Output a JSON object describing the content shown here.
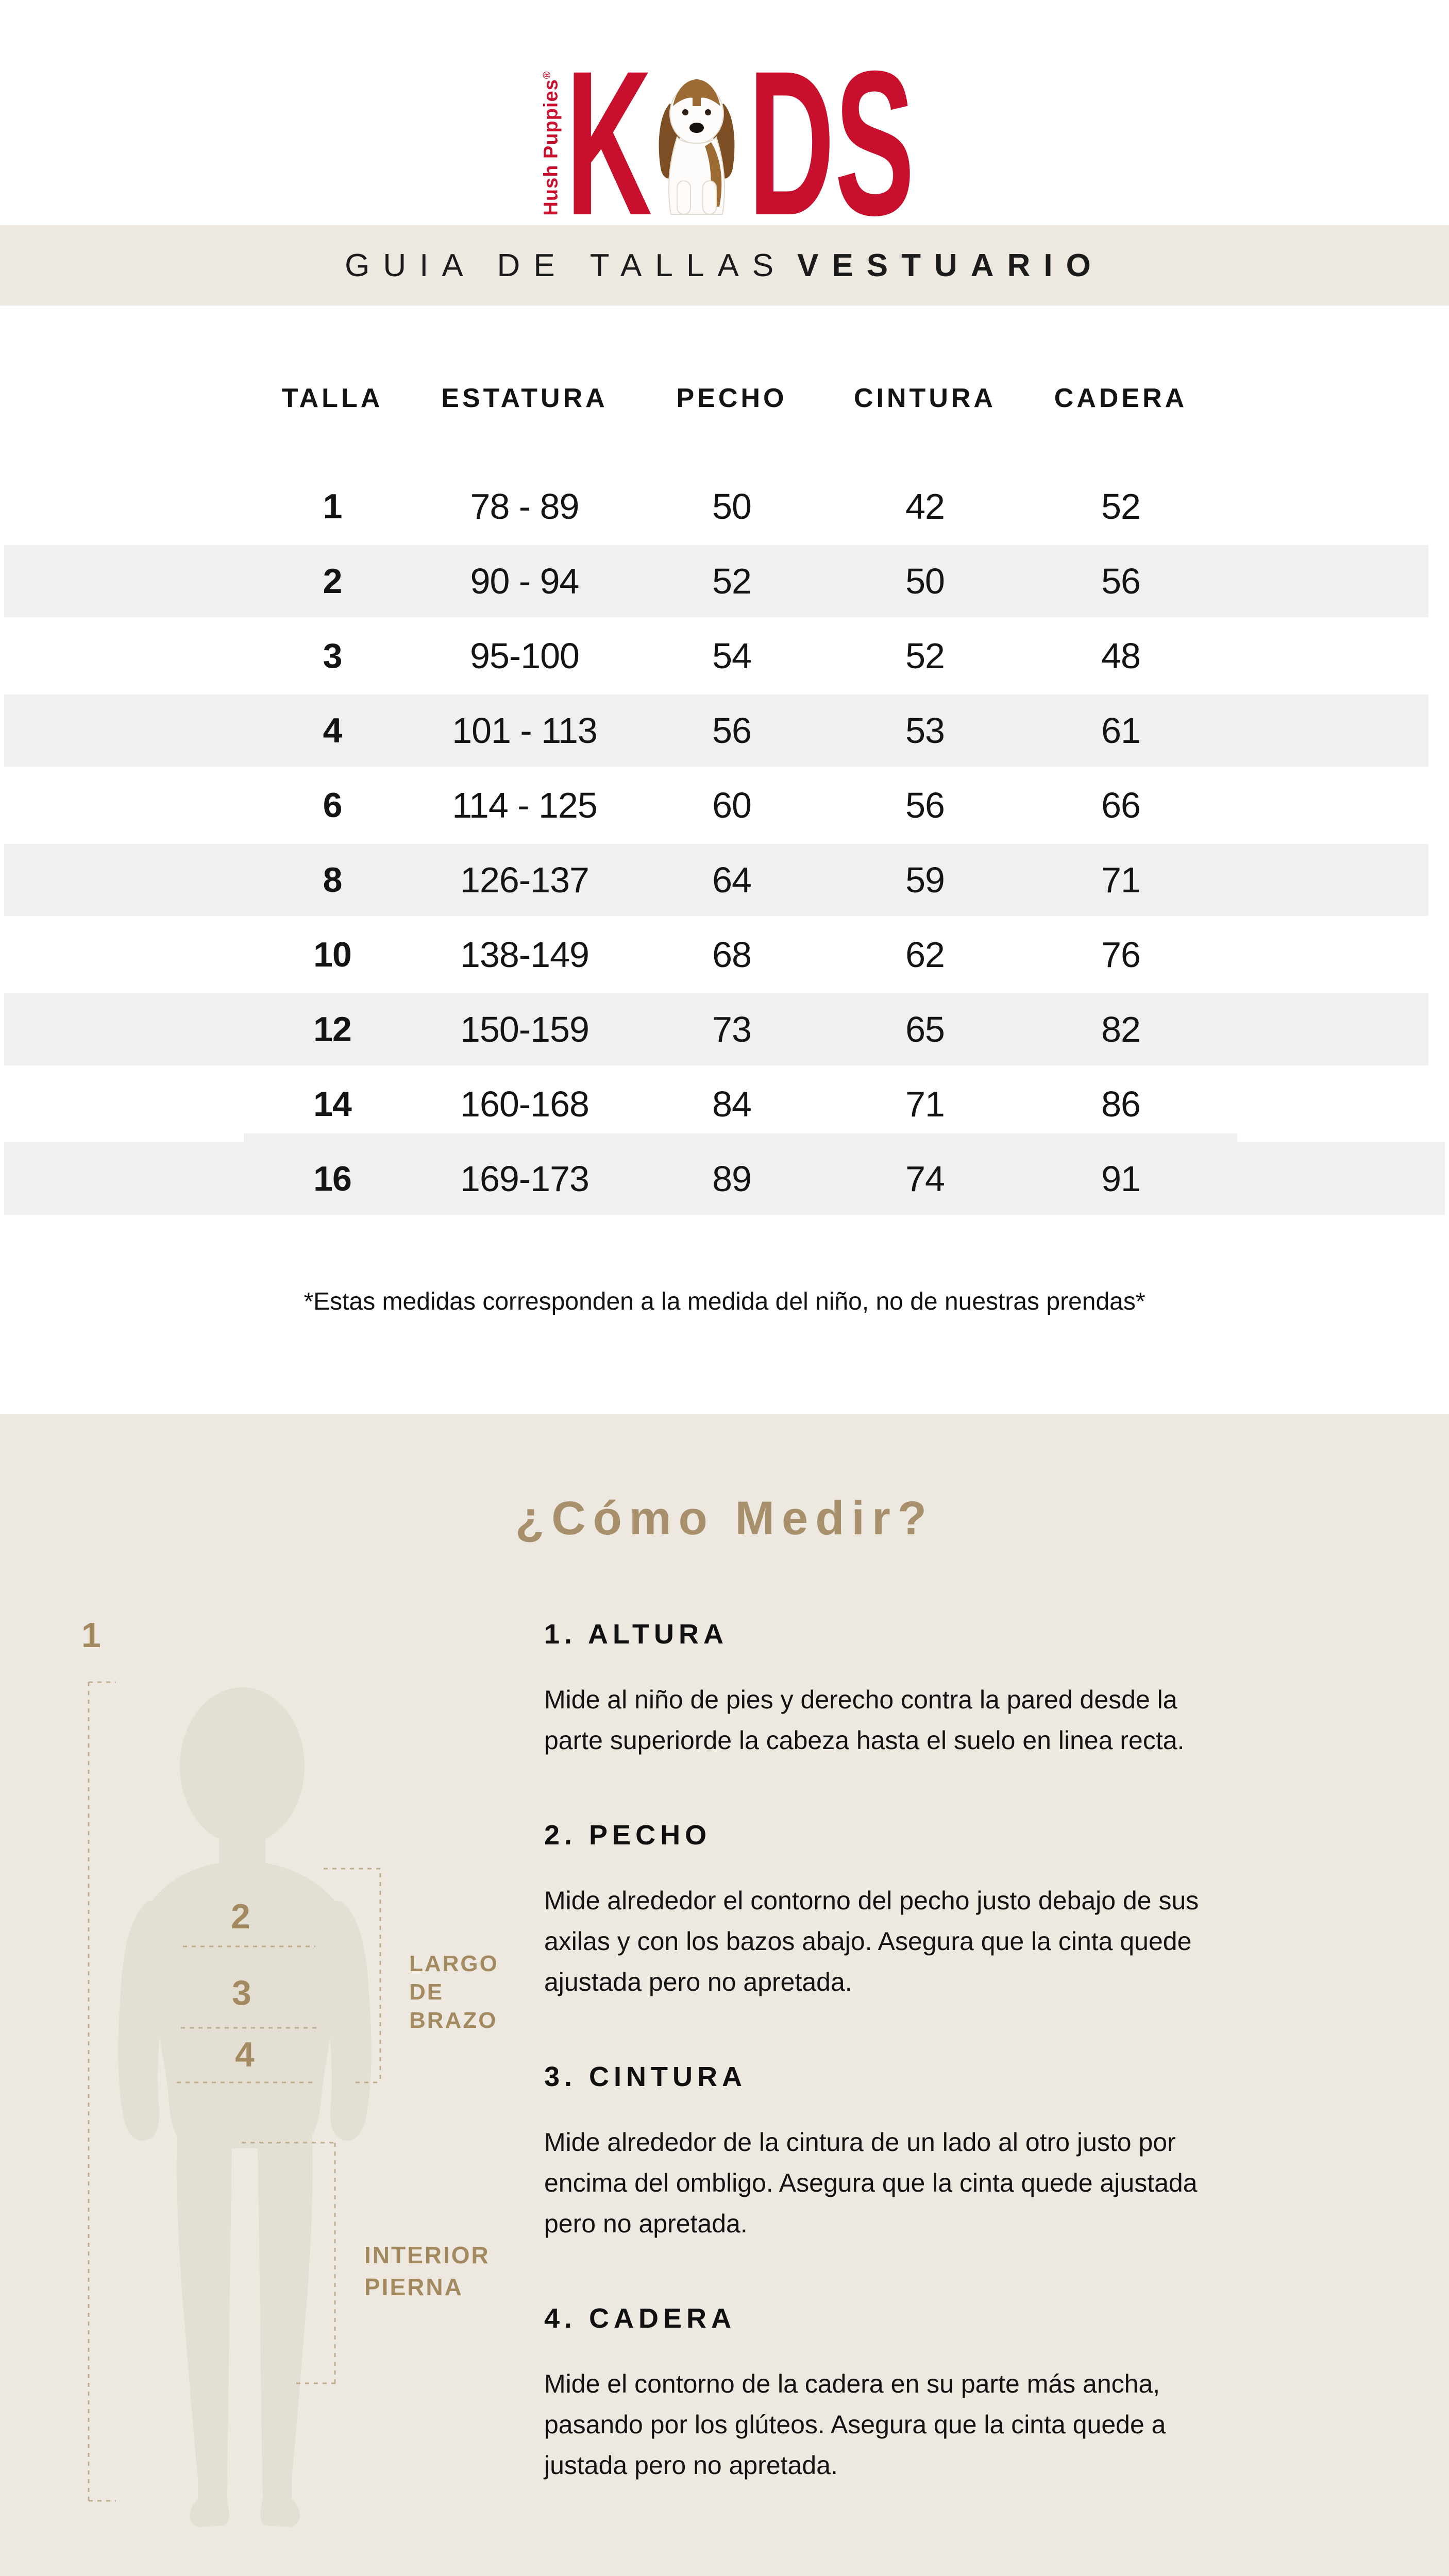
{
  "logo": {
    "brand_vertical": "Hush Puppies",
    "trademark": "®",
    "wordmark_k": "K",
    "wordmark_d": "D",
    "wordmark_s": "S",
    "dog_icon": "basset-hound"
  },
  "banner": {
    "title_light": "GUIA DE TALLAS",
    "title_bold": "VESTUARIO"
  },
  "size_table": {
    "columns": [
      "TALLA",
      "ESTATURA",
      "PECHO",
      "CINTURA",
      "CADERA"
    ],
    "rows": [
      {
        "talla": "1",
        "estatura": "78 - 89",
        "pecho": "50",
        "cintura": "42",
        "cadera": "52",
        "striped": false
      },
      {
        "talla": "2",
        "estatura": "90 - 94",
        "pecho": "52",
        "cintura": "50",
        "cadera": "56",
        "striped": true
      },
      {
        "talla": "3",
        "estatura": "95-100",
        "pecho": "54",
        "cintura": "52",
        "cadera": "48",
        "striped": false
      },
      {
        "talla": "4",
        "estatura": "101 - 113",
        "pecho": "56",
        "cintura": "53",
        "cadera": "61",
        "striped": true
      },
      {
        "talla": "6",
        "estatura": "114 - 125",
        "pecho": "60",
        "cintura": "56",
        "cadera": "66",
        "striped": false
      },
      {
        "talla": "8",
        "estatura": "126-137",
        "pecho": "64",
        "cintura": "59",
        "cadera": "71",
        "striped": true
      },
      {
        "talla": "10",
        "estatura": "138-149",
        "pecho": "68",
        "cintura": "62",
        "cadera": "76",
        "striped": false
      },
      {
        "talla": "12",
        "estatura": "150-159",
        "pecho": "73",
        "cintura": "65",
        "cadera": "82",
        "striped": true
      },
      {
        "talla": "14",
        "estatura": "160-168",
        "pecho": "84",
        "cintura": "71",
        "cadera": "86",
        "striped": false
      },
      {
        "talla": "16",
        "estatura": "169-173",
        "pecho": "89",
        "cintura": "74",
        "cadera": "91",
        "striped": true
      }
    ],
    "footnote": "*Estas medidas corresponden a la medida del niño, no de nuestras prendas*"
  },
  "measure_section": {
    "title": "¿Cómo Medir?",
    "figure_markers": [
      "1",
      "2",
      "3",
      "4"
    ],
    "figure_labels": {
      "arm": "LARGO\nDE\nBRAZO",
      "inner_leg": "INTERIOR\nPIERNA"
    },
    "steps": [
      {
        "heading": "1. ALTURA",
        "body": "Mide al niño de pies y derecho contra la pared desde la\nparte superiorde la cabeza hasta el suelo en linea recta."
      },
      {
        "heading": "2. PECHO",
        "body": "Mide alrededor el contorno del pecho  justo debajo de sus\naxilas y con los bazos abajo. Asegura que la cinta quede\najustada pero no apretada."
      },
      {
        "heading": "3. CINTURA",
        "body": "Mide alrededor de la cintura de un lado al otro justo por\nencima del ombligo. Asegura que la cinta quede ajustada\npero no apretada."
      },
      {
        "heading": "4. CADERA",
        "body": "Mide el contorno de la cadera en su parte más ancha,\npasando por los glúteos. Asegura que la cinta quede a\njustada pero no apretada."
      }
    ]
  },
  "colors": {
    "brand_red": "#C8102E",
    "accent_tan": "#A38A60",
    "beige": "#EDE9E0",
    "row_stripe": "#F0F0F0",
    "silhouette": "#E4DFD3"
  }
}
